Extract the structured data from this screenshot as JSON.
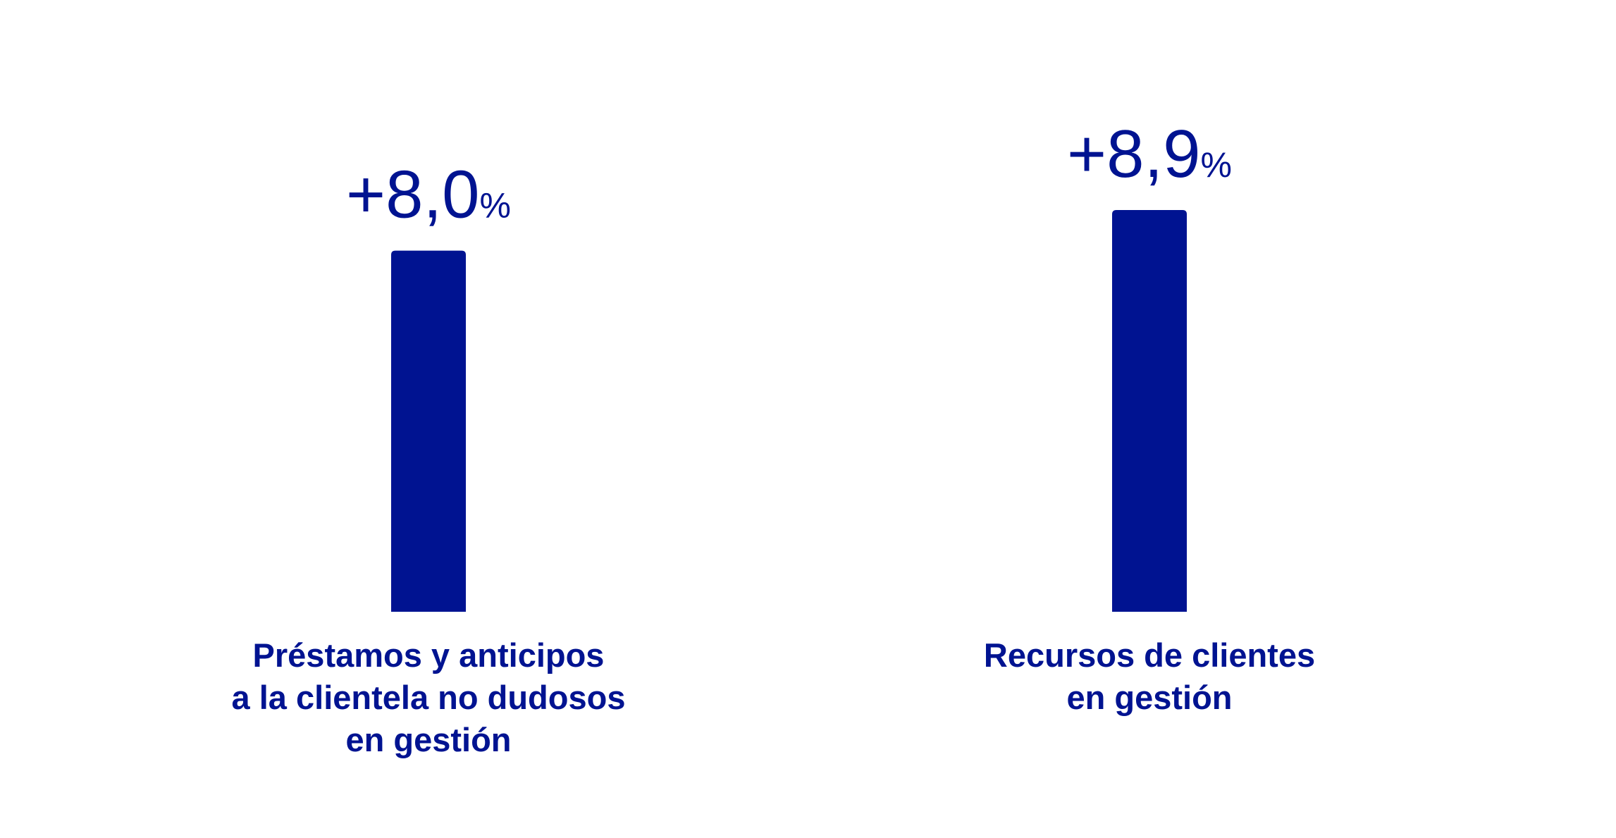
{
  "chart_data": {
    "type": "bar",
    "categories": [
      [
        "Préstamos y anticipos",
        "a la clientela no dudosos",
        "en gestión"
      ],
      [
        "Recursos de clientes",
        "en gestión"
      ]
    ],
    "values": [
      8.0,
      8.9
    ],
    "data_labels": [
      {
        "number": "+8,0",
        "unit": "%"
      },
      {
        "number": "+8,9",
        "unit": "%"
      }
    ],
    "ylim": [
      0,
      8.9
    ],
    "grid": false,
    "colors": {
      "bar": "#001391",
      "text": "#001391"
    }
  }
}
